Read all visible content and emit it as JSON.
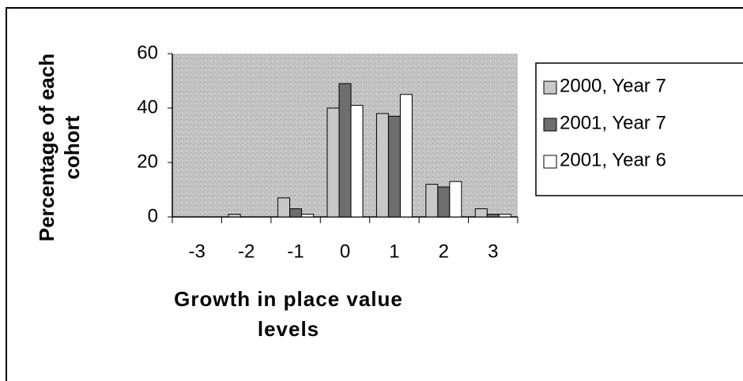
{
  "chart_data": {
    "type": "bar",
    "xlabel": "Growth in place value levels",
    "ylabel": "Percentage of each cohort",
    "categories": [
      "-3",
      "-2",
      "-1",
      "0",
      "1",
      "2",
      "3"
    ],
    "series": [
      {
        "name": "2000, Year 7",
        "color": "#c8c8c8",
        "values": [
          0,
          1,
          7,
          40,
          38,
          12,
          3
        ]
      },
      {
        "name": "2001, Year 7",
        "color": "#6e6e6e",
        "values": [
          0,
          0,
          3,
          49,
          37,
          11,
          1
        ]
      },
      {
        "name": "2001, Year 6",
        "color": "#ffffff",
        "values": [
          0,
          0,
          1,
          41,
          45,
          13,
          1
        ]
      }
    ],
    "ylim": [
      0,
      60
    ],
    "yticks": [
      0,
      20,
      40,
      60
    ],
    "grid": false,
    "legend": "right"
  }
}
